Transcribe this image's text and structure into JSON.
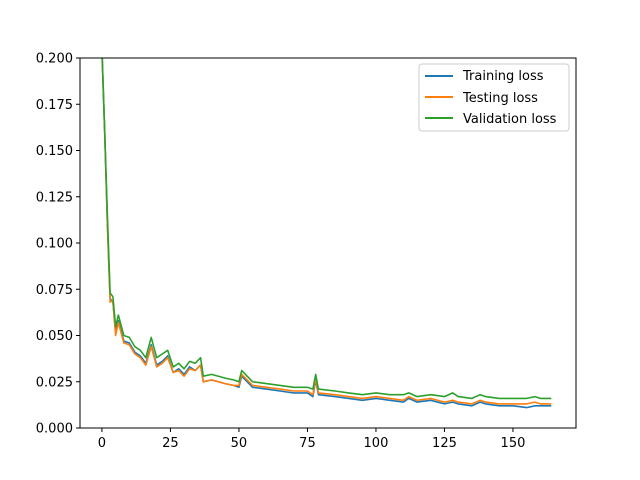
{
  "chart_data": {
    "type": "line",
    "title": "",
    "xlabel": "",
    "ylabel": "",
    "xlim": [
      -8,
      173
    ],
    "ylim": [
      0,
      0.2
    ],
    "grid": false,
    "legend_position": "top-right",
    "x_ticks": [
      0,
      25,
      50,
      75,
      100,
      125,
      150
    ],
    "x_tick_labels": [
      "0",
      "25",
      "50",
      "75",
      "100",
      "125",
      "150"
    ],
    "y_ticks": [
      0,
      0.025,
      0.05,
      0.075,
      0.1,
      0.125,
      0.15,
      0.175,
      0.2
    ],
    "y_tick_labels": [
      "0.000",
      "0.025",
      "0.050",
      "0.075",
      "0.100",
      "0.125",
      "0.150",
      "0.175",
      "0.200"
    ],
    "x_points": [
      0,
      1,
      2,
      3,
      4,
      5,
      6,
      8,
      10,
      12,
      14,
      16,
      18,
      20,
      22,
      24,
      26,
      28,
      30,
      32,
      34,
      36,
      37,
      40,
      45,
      48,
      50,
      51,
      55,
      60,
      65,
      70,
      75,
      77,
      78,
      79,
      85,
      90,
      95,
      100,
      105,
      110,
      112,
      115,
      120,
      125,
      128,
      130,
      135,
      138,
      140,
      145,
      150,
      155,
      158,
      160,
      162,
      164
    ],
    "series": [
      {
        "name": "Training loss",
        "color": "#1f77b4",
        "values": [
          0.205,
          0.16,
          0.11,
          0.07,
          0.068,
          0.052,
          0.058,
          0.047,
          0.046,
          0.041,
          0.039,
          0.035,
          0.045,
          0.034,
          0.036,
          0.039,
          0.03,
          0.032,
          0.029,
          0.033,
          0.031,
          0.034,
          0.025,
          0.026,
          0.024,
          0.023,
          0.022,
          0.028,
          0.022,
          0.021,
          0.02,
          0.019,
          0.019,
          0.017,
          0.026,
          0.018,
          0.017,
          0.016,
          0.015,
          0.016,
          0.015,
          0.014,
          0.016,
          0.014,
          0.015,
          0.013,
          0.014,
          0.013,
          0.012,
          0.014,
          0.013,
          0.012,
          0.012,
          0.011,
          0.012,
          0.012,
          0.012,
          0.012
        ]
      },
      {
        "name": "Testing loss",
        "color": "#ff7f0e",
        "values": [
          0.205,
          0.16,
          0.11,
          0.068,
          0.069,
          0.05,
          0.057,
          0.046,
          0.045,
          0.04,
          0.038,
          0.034,
          0.044,
          0.033,
          0.035,
          0.038,
          0.03,
          0.031,
          0.028,
          0.032,
          0.031,
          0.034,
          0.025,
          0.026,
          0.024,
          0.023,
          0.023,
          0.029,
          0.023,
          0.022,
          0.021,
          0.02,
          0.02,
          0.018,
          0.027,
          0.019,
          0.018,
          0.017,
          0.016,
          0.017,
          0.016,
          0.015,
          0.017,
          0.015,
          0.016,
          0.014,
          0.015,
          0.014,
          0.013,
          0.015,
          0.014,
          0.013,
          0.013,
          0.013,
          0.014,
          0.013,
          0.013,
          0.013
        ]
      },
      {
        "name": "Validation loss",
        "color": "#2ca02c",
        "values": [
          0.205,
          0.16,
          0.115,
          0.073,
          0.071,
          0.055,
          0.061,
          0.05,
          0.049,
          0.044,
          0.042,
          0.038,
          0.049,
          0.038,
          0.04,
          0.042,
          0.033,
          0.035,
          0.032,
          0.036,
          0.035,
          0.038,
          0.028,
          0.029,
          0.027,
          0.026,
          0.025,
          0.031,
          0.025,
          0.024,
          0.023,
          0.022,
          0.022,
          0.021,
          0.029,
          0.021,
          0.02,
          0.019,
          0.018,
          0.019,
          0.018,
          0.018,
          0.019,
          0.017,
          0.018,
          0.017,
          0.019,
          0.017,
          0.016,
          0.018,
          0.017,
          0.016,
          0.016,
          0.016,
          0.017,
          0.016,
          0.016,
          0.016
        ]
      }
    ]
  }
}
